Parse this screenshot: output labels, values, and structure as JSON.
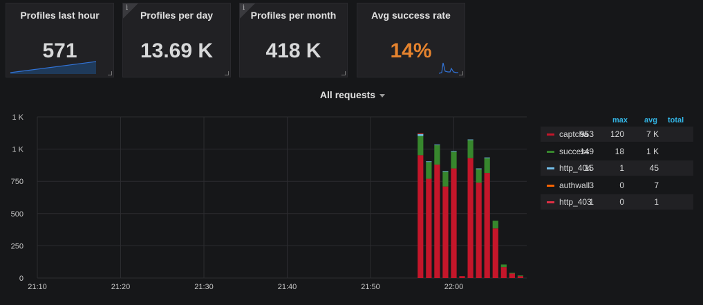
{
  "stats": [
    {
      "title": "Profiles last hour",
      "value": "571",
      "color": "#d8d9da",
      "info": false,
      "spark": "line"
    },
    {
      "title": "Profiles per day",
      "value": "13.69 K",
      "color": "#d8d9da",
      "info": true,
      "spark": ""
    },
    {
      "title": "Profiles per month",
      "value": "418 K",
      "color": "#d8d9da",
      "info": true,
      "spark": ""
    },
    {
      "title": "Avg success rate",
      "value": "14%",
      "color": "#e5832e",
      "info": false,
      "spark": "spike"
    }
  ],
  "graph": {
    "title": "All requests",
    "legend_headers": {
      "max": "max",
      "avg": "avg",
      "total": "total"
    },
    "legend": [
      {
        "name": "captcha",
        "color": "#c4162a",
        "max": "953",
        "avg": "120",
        "total": "7 K"
      },
      {
        "name": "success",
        "color": "#37872d",
        "max": "149",
        "avg": "18",
        "total": "1 K"
      },
      {
        "name": "http_404",
        "color": "#73bfe9",
        "max": "15",
        "avg": "1",
        "total": "45"
      },
      {
        "name": "authwall",
        "color": "#fa6400",
        "max": "3",
        "avg": "0",
        "total": "7"
      },
      {
        "name": "http_403",
        "color": "#e02f44",
        "max": "1",
        "avg": "0",
        "total": "1"
      }
    ]
  },
  "chart_data": {
    "type": "bar",
    "stacked": true,
    "y_ticks": [
      "0",
      "250",
      "500",
      "750",
      "1 K",
      "1 K"
    ],
    "ylim": [
      0,
      1250
    ],
    "x_ticks": [
      "21:10",
      "21:20",
      "21:30",
      "21:40",
      "21:50",
      "22:00"
    ],
    "grid": true,
    "legend_position": "right",
    "x": [
      "21:56",
      "21:57",
      "21:58",
      "21:59",
      "22:00",
      "22:01",
      "22:02",
      "22:03",
      "22:04",
      "22:05",
      "22:06",
      "22:07",
      "22:08",
      "22:09"
    ],
    "series": [
      {
        "name": "captcha",
        "color": "#c4162a",
        "values": [
          953,
          770,
          880,
          710,
          850,
          15,
          930,
          740,
          815,
          385,
          85,
          35,
          15,
          0
        ]
      },
      {
        "name": "success",
        "color": "#37872d",
        "values": [
          149,
          130,
          150,
          115,
          130,
          0,
          140,
          105,
          115,
          60,
          20,
          5,
          5,
          0
        ]
      },
      {
        "name": "http_404",
        "color": "#73bfe9",
        "values": [
          15,
          5,
          5,
          5,
          5,
          0,
          5,
          5,
          5,
          0,
          0,
          0,
          0,
          0
        ]
      },
      {
        "name": "authwall",
        "color": "#fa6400",
        "values": [
          3,
          0,
          0,
          0,
          0,
          0,
          0,
          0,
          0,
          0,
          0,
          0,
          0,
          0
        ]
      },
      {
        "name": "http_403",
        "color": "#e02f44",
        "values": [
          1,
          0,
          0,
          0,
          0,
          0,
          0,
          0,
          0,
          0,
          0,
          0,
          0,
          0
        ]
      }
    ]
  }
}
